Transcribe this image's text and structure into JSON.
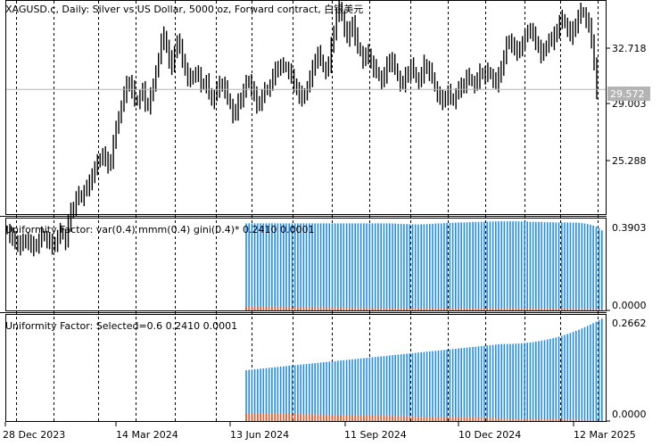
{
  "chart_data": [
    {
      "type": "ohlc",
      "panel": "main",
      "title": "XAGUSD.c, Daily:  Silver vs US Dollar, 5000 oz, Forward contract, 白银美元",
      "symbol": "XAGUSD.c",
      "timeframe": "Daily",
      "ylabel": "",
      "ylim": [
        22.5,
        34.6
      ],
      "yticks": [
        "32.718",
        "29.003",
        "25.288"
      ],
      "current_price": "29.572",
      "current_price_label_bg": "#b4b4b4",
      "grid": "vertical dashed",
      "close_series_approx": [
        21.6,
        21.3,
        21.0,
        21.0,
        20.7,
        20.9,
        20.8,
        21.1,
        20.9,
        20.6,
        20.7,
        20.8,
        21.0,
        21.3,
        21.2,
        21.0,
        20.8,
        20.7,
        20.9,
        21.2,
        21.5,
        21.3,
        20.9,
        22.0,
        22.6,
        22.9,
        23.4,
        23.6,
        23.4,
        23.8,
        24.0,
        24.2,
        24.8,
        25.1,
        25.4,
        25.7,
        25.9,
        25.5,
        25.3,
        25.6,
        26.6,
        27.3,
        28.1,
        28.6,
        29.3,
        29.8,
        30.0,
        29.6,
        29.0,
        28.9,
        29.2,
        29.5,
        28.8,
        28.7,
        29.3,
        29.7,
        30.7,
        31.3,
        32.3,
        32.6,
        32.0,
        31.3,
        30.8,
        31.8,
        32.3,
        31.9,
        31.3,
        30.7,
        30.3,
        30.1,
        30.4,
        30.5,
        30.3,
        29.9,
        29.9,
        30.0,
        29.4,
        28.9,
        29.2,
        29.6,
        29.8,
        29.9,
        29.6,
        29.1,
        28.7,
        28.1,
        28.3,
        28.8,
        29.1,
        29.5,
        29.9,
        30.1,
        29.6,
        29.2,
        28.7,
        28.9,
        29.2,
        29.5,
        29.6,
        29.8,
        30.3,
        30.6,
        30.9,
        30.9,
        30.9,
        30.8,
        30.6,
        30.2,
        29.9,
        29.6,
        29.3,
        29.0,
        29.4,
        29.7,
        30.2,
        30.7,
        31.3,
        31.6,
        31.3,
        30.8,
        30.6,
        31.0,
        32.0,
        32.9,
        33.8,
        34.3,
        33.7,
        33.0,
        32.5,
        32.9,
        33.4,
        32.6,
        32.0,
        31.7,
        31.2,
        31.5,
        31.6,
        31.1,
        30.8,
        30.6,
        30.3,
        30.0,
        30.4,
        30.9,
        31.3,
        31.1,
        30.8,
        30.3,
        29.9,
        29.9,
        30.3,
        30.6,
        30.9,
        30.6,
        30.2,
        30.0,
        30.4,
        31.0,
        30.8,
        30.6,
        30.3,
        29.7,
        29.3,
        29.0,
        28.9,
        29.2,
        29.4,
        29.1,
        28.9,
        29.3,
        29.6,
        29.7,
        29.9,
        30.3,
        30.2,
        30.0,
        29.8,
        30.1,
        30.5,
        30.5,
        30.4,
        30.6,
        30.4,
        30.1,
        29.9,
        30.3,
        30.9,
        31.4,
        32.1,
        32.4,
        32.1,
        31.8,
        31.7,
        32.0,
        32.2,
        32.5,
        33.0,
        32.9,
        32.6,
        32.3,
        32.0,
        31.6,
        31.7,
        32.1,
        32.4,
        32.3,
        32.6,
        33.0,
        33.4,
        33.6,
        33.3,
        33.0,
        32.6,
        32.9,
        33.3,
        33.7,
        34.0,
        33.9,
        33.5,
        33.1,
        32.4,
        31.0,
        29.572
      ],
      "start_x": 6,
      "bar_spacing": 3
    },
    {
      "type": "bar",
      "panel": "indicator-1",
      "title": "Uniformity Factor: var(0.4) mmm(0.4) gini(0.4)* 0.2410 0.0001",
      "ylim": [
        0.0,
        0.3903
      ],
      "yticks": [
        "0.3903",
        "0.0000"
      ],
      "series": [
        {
          "name": "uniformity",
          "color": "#1e8cf0",
          "values_approx": [
            0.381,
            0.381,
            0.381,
            0.381,
            0.381,
            0.381,
            0.381,
            0.381,
            0.381,
            0.381,
            0.381,
            0.381,
            0.381,
            0.381,
            0.381,
            0.381,
            0.381,
            0.381,
            0.381,
            0.381,
            0.381,
            0.381,
            0.381,
            0.381,
            0.381,
            0.381,
            0.381,
            0.381,
            0.381,
            0.381,
            0.381,
            0.381,
            0.381,
            0.381,
            0.381,
            0.381,
            0.381,
            0.381,
            0.381,
            0.381,
            0.381,
            0.381,
            0.381,
            0.381,
            0.381,
            0.381,
            0.381,
            0.381,
            0.381,
            0.381,
            0.381,
            0.38,
            0.38,
            0.379,
            0.379,
            0.378,
            0.378,
            0.377,
            0.377,
            0.377,
            0.376,
            0.377,
            0.377,
            0.378,
            0.379,
            0.379,
            0.38,
            0.381,
            0.381,
            0.382,
            0.383,
            0.383,
            0.384,
            0.384,
            0.385,
            0.385,
            0.385,
            0.386,
            0.386,
            0.387,
            0.387,
            0.387,
            0.388,
            0.388,
            0.388,
            0.389,
            0.389,
            0.389,
            0.39,
            0.39,
            0.39,
            0.39,
            0.39,
            0.39,
            0.39,
            0.39,
            0.389,
            0.389,
            0.389,
            0.388,
            0.388,
            0.387,
            0.387,
            0.387,
            0.386,
            0.386,
            0.386,
            0.386,
            0.385,
            0.385,
            0.385,
            0.385,
            0.385,
            0.385,
            0.384,
            0.384,
            0.383,
            0.382,
            0.38,
            0.378,
            0.375,
            0.371,
            0.366,
            0.36,
            0.35
          ]
        },
        {
          "name": "residual",
          "color": "#f05a1e",
          "values_approx_scale": "≈0.006 decreasing to ≈0.003"
        }
      ],
      "start_x": 276,
      "bar_spacing": 3.2
    },
    {
      "type": "bar",
      "panel": "indicator-2",
      "title": "Uniformity Factor: Selected=0.6 0.2410 0.0001",
      "ylim": [
        0.0,
        0.2662
      ],
      "yticks": [
        "0.2662",
        "0.0000"
      ],
      "series": [
        {
          "name": "selected",
          "color": "#1e8cf0",
          "values_start": 0.132,
          "values_end": 0.266,
          "shape": "slowly rising from 0.132 to ~0.20 by Jan 2025, then accelerating to 0.266 at the last bar"
        },
        {
          "name": "residual",
          "color": "#f05a1e",
          "values_approx_scale": "≈0.020 decreasing to ≈0.002"
        }
      ],
      "start_x": 276,
      "bar_spacing": 3.2
    }
  ],
  "panels": {
    "main": {
      "title": "XAGUSD.c, Daily:  Silver vs US Dollar, 5000 oz, Forward contract, 白银美元",
      "price_labels": [
        "32.718",
        "29.003",
        "25.288"
      ],
      "current_price": "29.572"
    },
    "ind1": {
      "title": "Uniformity Factor: var(0.4) mmm(0.4) gini(0.4)* 0.2410 0.0001",
      "max_label": "0.3903",
      "min_label": "0.0000"
    },
    "ind2": {
      "title": "Uniformity Factor: Selected=0.6 0.2410 0.0001",
      "max_label": "0.2662",
      "min_label": "0.0000"
    }
  },
  "x_axis": {
    "labels": [
      "28 Dec 2023",
      "14 Mar 2024",
      "13 Jun 2024",
      "11 Sep 2024",
      "10 Dec 2024",
      "12 Mar 2025"
    ]
  },
  "colors": {
    "background": "#ffffff",
    "bars": "#000000",
    "histogram_main": "#1e8cf0",
    "histogram_residual": "#f05a1e",
    "current_price_line": "#b4b4b4",
    "current_price_label_bg": "#b4b4b4",
    "current_price_label_text": "#ffffff"
  }
}
